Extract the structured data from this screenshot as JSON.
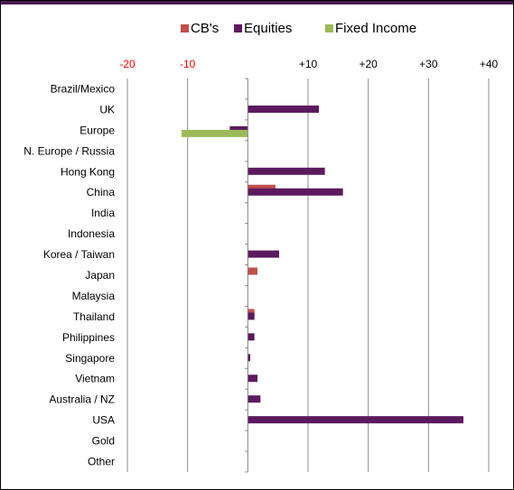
{
  "chart_data": {
    "type": "bar",
    "orientation": "horizontal",
    "legend_position": "top",
    "grid": true,
    "xlim": [
      -20,
      40
    ],
    "x_ticks": [
      {
        "value": -20,
        "label": "-20"
      },
      {
        "value": -10,
        "label": "-10"
      },
      {
        "value": 10,
        "label": "+10"
      },
      {
        "value": 20,
        "label": "+20"
      },
      {
        "value": 30,
        "label": "+30"
      },
      {
        "value": 40,
        "label": "+40"
      }
    ],
    "categories": [
      "Brazil/Mexico",
      "UK",
      "Europe",
      "N. Europe / Russia",
      "Hong Kong",
      "China",
      "India",
      "Indonesia",
      "Korea / Taiwan",
      "Japan",
      "Malaysia",
      "Thailand",
      "Philippines",
      "Singapore",
      "Vietnam",
      "Australia / NZ",
      "USA",
      "Gold",
      "Other"
    ],
    "series": [
      {
        "name": "CB's",
        "color": "#c0504d",
        "values": [
          0,
          0,
          0,
          0,
          0,
          4.6,
          0,
          0,
          0,
          1.6,
          0,
          1.1,
          0,
          0,
          0,
          0,
          0,
          0,
          0
        ]
      },
      {
        "name": "Equities",
        "color": "#5c1a5e",
        "values": [
          0,
          11.8,
          -3,
          0,
          12.8,
          15.8,
          0,
          0,
          5.2,
          0,
          0,
          1.1,
          1.1,
          0.4,
          1.6,
          2.1,
          35.8,
          0,
          0
        ]
      },
      {
        "name": "Fixed Income",
        "color": "#9bbb59",
        "values": [
          0,
          0,
          -11,
          0,
          0,
          0,
          0,
          0,
          0,
          0,
          0,
          0,
          0,
          0,
          0,
          0,
          0,
          0,
          0
        ]
      }
    ],
    "colors": {
      "negative_tick_label": "#ff0000",
      "positive_tick_label": "#000000",
      "gridline": "#8c8c8c",
      "top_bar": "#4b1a4f"
    }
  }
}
